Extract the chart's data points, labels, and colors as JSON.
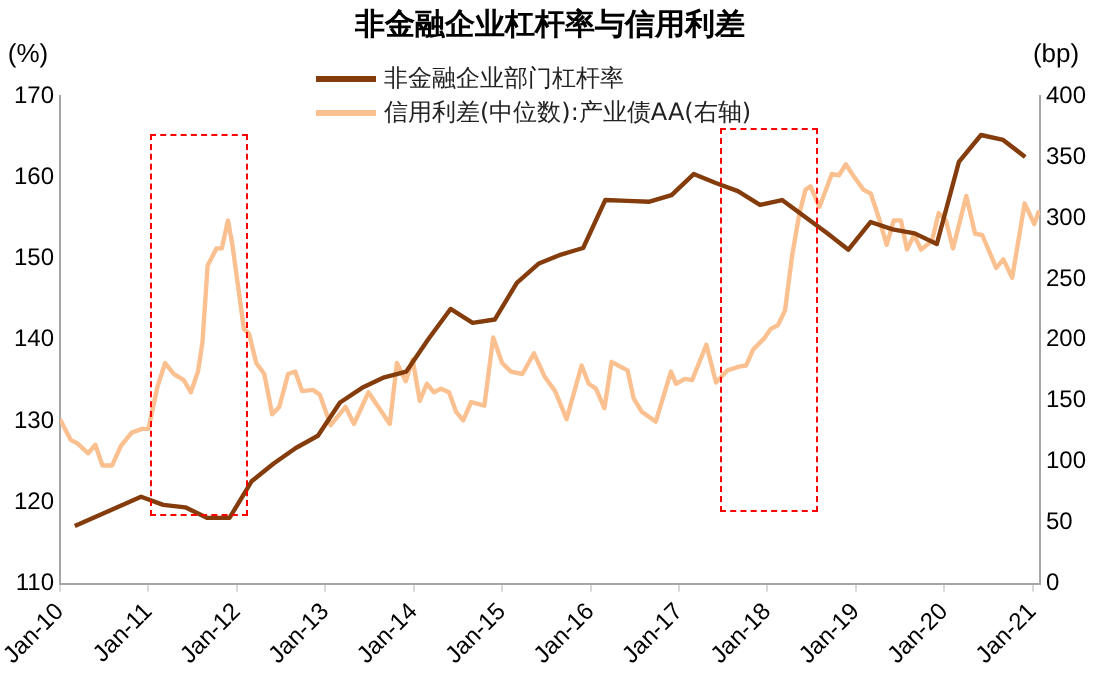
{
  "chart_data": {
    "type": "line",
    "title": "非金融企业杠杆率与信用利差",
    "ylabel": "(%)",
    "y2label": "(bp)",
    "legend": "top",
    "grid": false,
    "marker": "none",
    "xlim": [
      "2010-01",
      "2021-02"
    ],
    "xticks": [
      {
        "value": "2010-01",
        "label": "Jan-10"
      },
      {
        "value": "2011-01",
        "label": "Jan-11"
      },
      {
        "value": "2012-01",
        "label": "Jan-12"
      },
      {
        "value": "2013-01",
        "label": "Jan-13"
      },
      {
        "value": "2014-01",
        "label": "Jan-14"
      },
      {
        "value": "2015-01",
        "label": "Jan-15"
      },
      {
        "value": "2016-01",
        "label": "Jan-16"
      },
      {
        "value": "2017-01",
        "label": "Jan-17"
      },
      {
        "value": "2018-01",
        "label": "Jan-18"
      },
      {
        "value": "2019-01",
        "label": "Jan-19"
      },
      {
        "value": "2020-01",
        "label": "Jan-20"
      },
      {
        "value": "2021-01",
        "label": "Jan-21"
      }
    ],
    "ylim": [
      110,
      170
    ],
    "yticks": [
      110,
      120,
      130,
      140,
      150,
      160,
      170
    ],
    "y2lim": [
      0,
      400
    ],
    "y2ticks": [
      0,
      50,
      100,
      150,
      200,
      250,
      300,
      350,
      400
    ],
    "series": [
      {
        "name": "非金融企业部门杠杆率",
        "color": "#843c0c",
        "x": [
          "2010-03",
          "2010-06",
          "2010-09",
          "2010-12",
          "2011-03",
          "2011-06",
          "2011-09",
          "2011-12",
          "2012-03",
          "2012-06",
          "2012-09",
          "2012-12",
          "2013-03",
          "2013-06",
          "2013-09",
          "2013-12",
          "2014-03",
          "2014-06",
          "2014-09",
          "2014-12",
          "2015-03",
          "2015-06",
          "2015-09",
          "2015-12",
          "2016-03",
          "2016-06",
          "2016-09",
          "2016-12",
          "2017-03",
          "2017-06",
          "2017-09",
          "2017-12",
          "2018-03",
          "2018-06",
          "2018-09",
          "2018-12",
          "2019-03",
          "2019-06",
          "2019-09",
          "2019-12",
          "2020-03",
          "2020-06",
          "2020-09",
          "2020-12"
        ],
        "values": [
          117.1,
          118.3,
          119.5,
          120.7,
          119.7,
          119.4,
          118.1,
          118.1,
          122.6,
          124.8,
          126.7,
          128.2,
          132.3,
          134.1,
          135.4,
          136.1,
          140.1,
          143.8,
          142.1,
          142.5,
          147,
          149.4,
          150.5,
          151.3,
          157.2,
          157.1,
          157,
          157.8,
          160.4,
          159.3,
          158.3,
          156.6,
          157.2,
          155.2,
          153.2,
          151.1,
          154.5,
          153.6,
          153.1,
          151.8,
          161.9,
          165.2,
          164.6,
          162.5
        ]
      },
      {
        "name": "信用利差(中位数):产业债AA(右轴)",
        "color": "#fac090",
        "axis": "y2",
        "x": [
          "2010-01-01",
          "2010-02-14",
          "2010-03-13",
          "2010-04-26",
          "2010-05-25",
          "2010-06-24",
          "2010-08-03",
          "2010-09-09",
          "2010-10-23",
          "2010-12-06",
          "2011-01-01",
          "2011-02-07",
          "2011-03-09",
          "2011-04-15",
          "2011-05-25",
          "2011-06-24",
          "2011-07-23",
          "2011-08-11",
          "2011-09-02",
          "2011-10-08",
          "2011-10-30",
          "2011-11-25",
          "2011-12-13",
          "2012-01-30",
          "2012-02-21",
          "2012-03-20",
          "2012-04-23",
          "2012-05-25",
          "2012-06-24",
          "2012-07-30",
          "2012-08-29",
          "2012-09-27",
          "2012-11-11",
          "2012-12-09",
          "2013-01-23",
          "2013-03-24",
          "2013-04-28",
          "2013-06-27",
          "2013-09-24",
          "2013-10-23",
          "2013-11-29",
          "2013-12-27",
          "2014-01-26",
          "2014-02-25",
          "2014-03-24",
          "2014-04-23",
          "2014-05-25",
          "2014-06-24",
          "2014-07-23",
          "2014-08-25",
          "2014-10-19",
          "2014-11-25",
          "2015-01-01",
          "2015-02-07",
          "2015-03-24",
          "2015-05-11",
          "2015-06-24",
          "2015-08-07",
          "2015-09-24",
          "2015-11-25",
          "2015-12-24",
          "2016-01-23",
          "2016-02-28",
          "2016-03-27",
          "2016-05-03",
          "2016-06-02",
          "2016-06-27",
          "2016-07-30",
          "2016-09-27",
          "2016-11-29",
          "2016-12-20",
          "2017-01-26",
          "2017-02-25",
          "2017-04-23",
          "2017-06-02",
          "2017-07-19",
          "2017-09-06",
          "2017-10-05",
          "2017-11-03",
          "2017-12-17",
          "2018-01-15",
          "2018-02-14",
          "2018-03-13",
          "2018-04-12",
          "2018-05-11",
          "2018-06-06",
          "2018-06-27",
          "2018-08-03",
          "2018-09-24",
          "2018-10-23",
          "2018-11-21",
          "2018-12-20",
          "2019-02-03",
          "2019-03-02",
          "2019-04-05",
          "2019-05-07",
          "2019-06-06",
          "2019-07-05",
          "2019-07-30",
          "2019-08-29",
          "2019-09-27",
          "2019-11-11",
          "2019-12-09",
          "2020-01-08",
          "2020-02-07",
          "2020-04-01",
          "2020-05-07",
          "2020-06-06",
          "2020-08-03",
          "2020-09-02",
          "2020-10-08",
          "2020-11-29",
          "2021-01-08",
          "2021-01-28"
        ],
        "values": [
          135,
          118,
          115,
          107,
          114,
          97,
          97,
          113,
          124,
          127,
          127,
          161,
          181,
          172,
          167,
          157,
          174,
          198,
          261,
          275,
          275,
          298,
          278,
          209,
          205,
          181,
          172,
          139,
          145,
          172,
          174,
          158,
          159,
          155,
          130,
          145,
          131,
          157,
          131,
          181,
          166,
          184,
          150,
          164,
          157,
          160,
          157,
          141,
          134,
          149,
          146,
          202,
          181,
          174,
          172,
          189,
          170,
          158,
          135,
          179,
          164,
          160,
          144,
          182,
          178,
          175,
          152,
          141,
          133,
          174,
          164,
          168,
          167,
          196,
          165,
          175,
          178,
          179,
          192,
          201,
          209,
          212,
          224,
          269,
          303,
          323,
          326,
          309,
          336,
          335,
          344,
          335,
          323,
          320,
          300,
          278,
          298,
          298,
          274,
          286,
          274,
          281,
          304,
          298,
          275,
          318,
          287,
          286,
          259,
          266,
          251,
          312,
          295,
          306
        ]
      }
    ]
  }
}
